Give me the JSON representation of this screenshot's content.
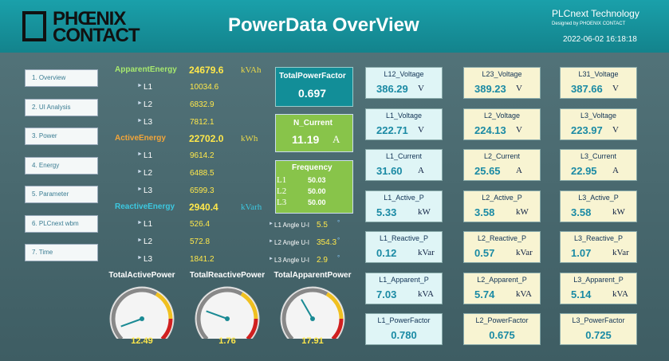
{
  "header": {
    "logo_line1": "PHŒNIX",
    "logo_line2": "CONTACT",
    "title": "PowerData OverView",
    "brand": "PLCnext Technology",
    "tagline": "Designed by PHOENIX CONTACT",
    "datetime": "2022-06-02 16:18:18"
  },
  "nav": [
    "1. Overview",
    "2. UI Analysis",
    "3. Power",
    "4. Energy",
    "5. Parameter",
    "6. PLCnext wbm",
    "7. Time"
  ],
  "energy": [
    {
      "label": "ApparentEnergy",
      "total": "24679.6",
      "unit": "kVAh",
      "phases": [
        {
          "label": "L1",
          "value": "10034.6"
        },
        {
          "label": "L2",
          "value": "6832.9"
        },
        {
          "label": "L3",
          "value": "7812.1"
        }
      ]
    },
    {
      "label": "ActiveEnergy",
      "total": "22702.0",
      "unit": "kWh",
      "phases": [
        {
          "label": "L1",
          "value": "9614.2"
        },
        {
          "label": "L2",
          "value": "6488.5"
        },
        {
          "label": "L3",
          "value": "6599.3"
        }
      ]
    },
    {
      "label": "ReactiveEnergy",
      "total": "2940.4",
      "unit": "kVarh",
      "phases": [
        {
          "label": "L1",
          "value": "526.4"
        },
        {
          "label": "L2",
          "value": "572.8"
        },
        {
          "label": "L3",
          "value": "1841.2"
        }
      ]
    }
  ],
  "total_power_factor": {
    "label": "TotalPowerFactor",
    "value": "0.697"
  },
  "n_current": {
    "label": "N_Current",
    "value": "11.19",
    "unit": "A"
  },
  "frequency": {
    "label": "Frequency",
    "phases": [
      {
        "label": "L1",
        "value": "50.03"
      },
      {
        "label": "L2",
        "value": "50.00"
      },
      {
        "label": "L3",
        "value": "50.00"
      }
    ]
  },
  "angles": [
    {
      "label": "L1 Angle U-I",
      "value": "5.5",
      "unit": "°"
    },
    {
      "label": "L2 Angle U-I",
      "value": "354.3",
      "unit": "°"
    },
    {
      "label": "L3 Angle U-I",
      "value": "2.9",
      "unit": "°"
    }
  ],
  "gauges": [
    {
      "label": "TotalActivePower",
      "value": "12.49"
    },
    {
      "label": "TotalReactivePower",
      "value": "1.76"
    },
    {
      "label": "TotalApparentPower",
      "value": "17.91"
    }
  ],
  "cards": [
    [
      {
        "label": "L12_Voltage",
        "value": "386.29",
        "unit": "V"
      },
      {
        "label": "L23_Voltage",
        "value": "389.23",
        "unit": "V"
      },
      {
        "label": "L31_Voltage",
        "value": "387.66",
        "unit": "V"
      }
    ],
    [
      {
        "label": "L1_Voltage",
        "value": "222.71",
        "unit": "V"
      },
      {
        "label": "L2_Voltage",
        "value": "224.13",
        "unit": "V"
      },
      {
        "label": "L3_Voltage",
        "value": "223.97",
        "unit": "V"
      }
    ],
    [
      {
        "label": "L1_Current",
        "value": "31.60",
        "unit": "A"
      },
      {
        "label": "L2_Current",
        "value": "25.65",
        "unit": "A"
      },
      {
        "label": "L3_Current",
        "value": "22.95",
        "unit": "A"
      }
    ],
    [
      {
        "label": "L1_Active_P",
        "value": "5.33",
        "unit": "kW"
      },
      {
        "label": "L2_Active_P",
        "value": "3.58",
        "unit": "kW"
      },
      {
        "label": "L3_Active_P",
        "value": "3.58",
        "unit": "kW"
      }
    ],
    [
      {
        "label": "L1_Reactive_P",
        "value": "0.12",
        "unit": "kVar"
      },
      {
        "label": "L2_Reactive_P",
        "value": "0.57",
        "unit": "kVar"
      },
      {
        "label": "L3_Reactive_P",
        "value": "1.07",
        "unit": "kVar"
      }
    ],
    [
      {
        "label": "L1_Apparent_P",
        "value": "7.03",
        "unit": "kVA"
      },
      {
        "label": "L2_Apparent_P",
        "value": "5.74",
        "unit": "kVA"
      },
      {
        "label": "L3_Apparent_P",
        "value": "5.14",
        "unit": "kVA"
      }
    ],
    [
      {
        "label": "L1_PowerFactor",
        "value": "0.780"
      },
      {
        "label": "L2_PowerFactor",
        "value": "0.675"
      },
      {
        "label": "L3_PowerFactor",
        "value": "0.725"
      }
    ]
  ]
}
